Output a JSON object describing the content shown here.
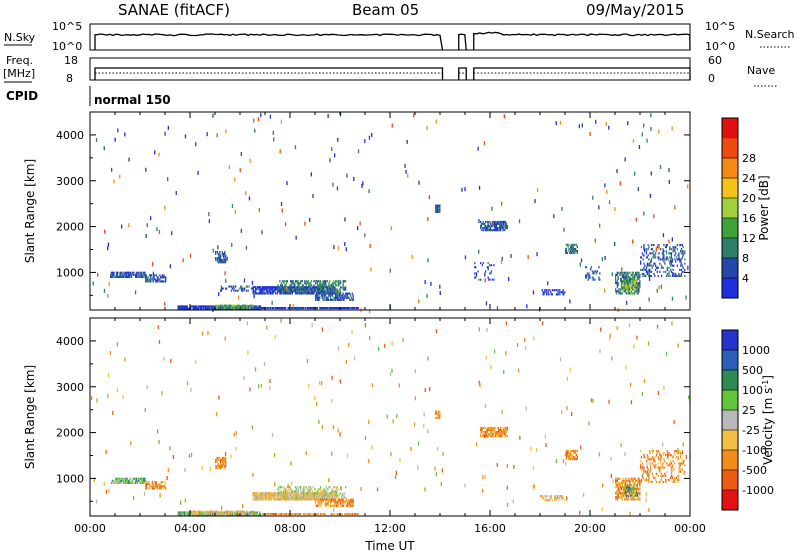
{
  "header": {
    "station": "SANAE (fitACF)",
    "beam": "Beam 05",
    "date": "09/May/2015"
  },
  "strip": {
    "nsky_label": "N.Sky",
    "nsearch_label": "N.Search",
    "nsky_ticks": [
      "10^5",
      "10^0"
    ],
    "nsearch_ticks": [
      "10^5",
      "10^0"
    ],
    "freq_label": "Freq.",
    "freq_unit": "[MHz]",
    "freq_ticks": [
      "18",
      "8"
    ],
    "nave_label": "Nave",
    "nave_ticks": [
      "60",
      "0"
    ],
    "cpid_label": "CPID",
    "cpid_value": "normal 150",
    "gaps_hours": [
      [
        14.1,
        14.75
      ],
      [
        15.05,
        15.35
      ]
    ]
  },
  "colors": {
    "power": [
      "#1f2fe0",
      "#2448a8",
      "#2e7f6a",
      "#3da23a",
      "#9fd23a",
      "#f5c21a",
      "#f58a12",
      "#ee4a10",
      "#e01010"
    ],
    "velocity": [
      "#2433c9",
      "#2a5fb5",
      "#2e8a55",
      "#62c43a",
      "#b8b8b8",
      "#f2c040",
      "#f28c18",
      "#ee5a14",
      "#e01212"
    ]
  },
  "chart_data": [
    {
      "type": "heatmap",
      "name": "power",
      "ylabel": "Slant Range [km]",
      "xlim": [
        0,
        24
      ],
      "ylim": [
        180,
        4500
      ],
      "yticks": [
        1000,
        2000,
        3000,
        4000
      ],
      "colorbar": {
        "label": "Power [dB]",
        "ticks": [
          "4",
          "8",
          "12",
          "16",
          "20",
          "24",
          "28"
        ],
        "range": [
          0,
          30
        ]
      },
      "regions": [
        {
          "t": [
            0.8,
            2.2
          ],
          "r": [
            880,
            1000
          ],
          "level": 1,
          "density": 0.75
        },
        {
          "t": [
            2.2,
            3.0
          ],
          "r": [
            780,
            920
          ],
          "level": 1,
          "density": 0.6
        },
        {
          "t": [
            3.5,
            4.7
          ],
          "r": [
            190,
            240
          ],
          "level": 0,
          "density": 0.9
        },
        {
          "t": [
            4.7,
            6.8
          ],
          "r": [
            190,
            250
          ],
          "level": 1,
          "density": 0.95
        },
        {
          "t": [
            5.0,
            6.5
          ],
          "r": [
            210,
            260
          ],
          "level": 3,
          "density": 0.6
        },
        {
          "t": [
            6.8,
            10.7
          ],
          "r": [
            200,
            240
          ],
          "level": 0,
          "density": 0.85
        },
        {
          "t": [
            5.0,
            5.4
          ],
          "r": [
            1200,
            1450
          ],
          "level": 1,
          "density": 0.7
        },
        {
          "t": [
            5.2,
            6.5
          ],
          "r": [
            580,
            700
          ],
          "level": 1,
          "density": 0.3
        },
        {
          "t": [
            6.5,
            9.8
          ],
          "r": [
            520,
            700
          ],
          "level": 0,
          "density": 0.8
        },
        {
          "t": [
            7.5,
            10.2
          ],
          "r": [
            560,
            800
          ],
          "level": 2,
          "density": 0.5
        },
        {
          "t": [
            9.0,
            10.5
          ],
          "r": [
            380,
            560
          ],
          "level": 1,
          "density": 0.6
        },
        {
          "t": [
            13.8,
            14.0
          ],
          "r": [
            2300,
            2450
          ],
          "level": 1,
          "density": 0.8
        },
        {
          "t": [
            15.6,
            16.7
          ],
          "r": [
            1900,
            2100
          ],
          "level": 1,
          "density": 0.7
        },
        {
          "t": [
            15.2,
            16.2
          ],
          "r": [
            820,
            1200
          ],
          "level": 1,
          "density": 0.15
        },
        {
          "t": [
            19.0,
            19.5
          ],
          "r": [
            1400,
            1600
          ],
          "level": 2,
          "density": 0.6
        },
        {
          "t": [
            19.8,
            20.4
          ],
          "r": [
            820,
            1100
          ],
          "level": 1,
          "density": 0.3
        },
        {
          "t": [
            21.0,
            22.0
          ],
          "r": [
            520,
            1000
          ],
          "level": 2,
          "density": 0.6
        },
        {
          "t": [
            21.3,
            21.9
          ],
          "r": [
            600,
            800
          ],
          "level": 4,
          "density": 0.5
        },
        {
          "t": [
            22.0,
            23.8
          ],
          "r": [
            900,
            1600
          ],
          "level": 1,
          "density": 0.25
        },
        {
          "t": [
            18.0,
            19.0
          ],
          "r": [
            500,
            600
          ],
          "level": 0,
          "density": 0.4
        }
      ]
    },
    {
      "type": "heatmap",
      "name": "velocity",
      "xlabel": "Time UT",
      "ylabel": "Slant Range [km]",
      "xlim": [
        0,
        24
      ],
      "ylim": [
        180,
        4500
      ],
      "xticks": [
        "00:00",
        "04:00",
        "08:00",
        "12:00",
        "16:00",
        "20:00",
        "00:00"
      ],
      "yticks": [
        1000,
        2000,
        3000,
        4000
      ],
      "colorbar": {
        "label": "Velocity [m s^-1]",
        "ticks": [
          "1000",
          "500",
          "100",
          "25",
          "-25",
          "-100",
          "-500",
          "-1000"
        ]
      },
      "regions": [
        {
          "t": [
            0.8,
            2.2
          ],
          "r": [
            880,
            1000
          ],
          "level": 3,
          "density": 0.7
        },
        {
          "t": [
            2.2,
            3.0
          ],
          "r": [
            760,
            920
          ],
          "level": 6,
          "density": 0.6
        },
        {
          "t": [
            3.5,
            6.8
          ],
          "r": [
            190,
            250
          ],
          "level": 3,
          "density": 0.85
        },
        {
          "t": [
            4.0,
            6.5
          ],
          "r": [
            210,
            260
          ],
          "level": 5,
          "density": 0.5
        },
        {
          "t": [
            5.0,
            5.4
          ],
          "r": [
            1200,
            1450
          ],
          "level": 6,
          "density": 0.7
        },
        {
          "t": [
            6.5,
            9.8
          ],
          "r": [
            520,
            700
          ],
          "level": 5,
          "density": 0.8
        },
        {
          "t": [
            7.5,
            10.2
          ],
          "r": [
            560,
            800
          ],
          "level": 4,
          "density": 0.4
        },
        {
          "t": [
            9.0,
            10.5
          ],
          "r": [
            380,
            560
          ],
          "level": 6,
          "density": 0.6
        },
        {
          "t": [
            6.8,
            10.7
          ],
          "r": [
            200,
            240
          ],
          "level": 6,
          "density": 0.7
        },
        {
          "t": [
            13.8,
            14.0
          ],
          "r": [
            2300,
            2450
          ],
          "level": 6,
          "density": 0.8
        },
        {
          "t": [
            15.6,
            16.7
          ],
          "r": [
            1900,
            2100
          ],
          "level": 6,
          "density": 0.7
        },
        {
          "t": [
            19.0,
            19.5
          ],
          "r": [
            1400,
            1600
          ],
          "level": 6,
          "density": 0.6
        },
        {
          "t": [
            21.0,
            22.0
          ],
          "r": [
            520,
            1000
          ],
          "level": 6,
          "density": 0.6
        },
        {
          "t": [
            21.3,
            21.9
          ],
          "r": [
            600,
            800
          ],
          "level": 2,
          "density": 0.4
        },
        {
          "t": [
            22.0,
            23.8
          ],
          "r": [
            900,
            1600
          ],
          "level": 6,
          "density": 0.25
        },
        {
          "t": [
            18.0,
            19.0
          ],
          "r": [
            500,
            600
          ],
          "level": 5,
          "density": 0.4
        }
      ]
    }
  ]
}
